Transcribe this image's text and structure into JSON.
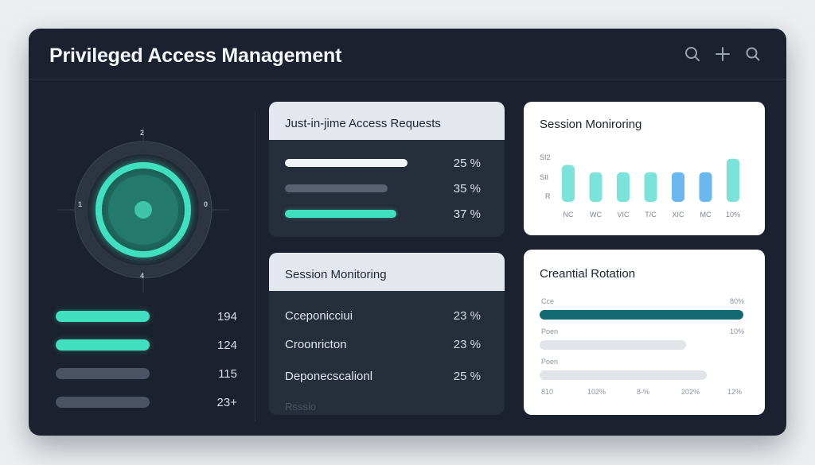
{
  "header": {
    "title": "Privileged Access Management",
    "icons": [
      "search-icon",
      "plus-icon",
      "search-icon"
    ]
  },
  "dial": {
    "labels": {
      "top": "2",
      "left": "1",
      "right": "0",
      "bottom": "4"
    },
    "colors": {
      "accent": "#3fdfc0",
      "ring": "#3b4454",
      "center": "#1f6e62"
    }
  },
  "left_bars": [
    {
      "value": "194",
      "active": true
    },
    {
      "value": "124",
      "active": true
    },
    {
      "value": "115",
      "active": false
    },
    {
      "value": "23+",
      "active": false
    }
  ],
  "jit_card": {
    "title": "Just-in-jime Access Requests",
    "rows": [
      {
        "value": "25 %",
        "fill": 1.0,
        "color": "#f2f4f7"
      },
      {
        "value": "35 %",
        "fill": 0.84,
        "color": "#586273"
      },
      {
        "value": "37 %",
        "fill": 0.91,
        "color": "#3fdfc0"
      }
    ]
  },
  "session_card_dark": {
    "title": "Session Monitoring",
    "rows": [
      {
        "label": "Cceponicciui",
        "value": "23 %"
      },
      {
        "label": "Croonricton",
        "value": "23 %"
      },
      {
        "label": "Deponecscalionl",
        "value": "25 %"
      }
    ],
    "faded": "Rsssio"
  },
  "session_card_light": {
    "title": "Session Moniroring",
    "y_ticks": [
      "SI2",
      "SII",
      "R"
    ],
    "chart_data": {
      "type": "bar",
      "categories": [
        "NC",
        "WC",
        "VIC",
        "T/C",
        "XIC",
        "MC",
        "10%"
      ],
      "values": [
        6,
        4.8,
        4.8,
        4.8,
        4.8,
        4.8,
        7
      ],
      "ylim": [
        0,
        8
      ],
      "colors": [
        "#7be3d9",
        "#7be3d9",
        "#7be3d9",
        "#7be3d9",
        "#69b8f0",
        "#69b8f0",
        "#7be3d9"
      ]
    }
  },
  "credential_card": {
    "title": "Creantial Rotation",
    "rows": [
      {
        "label": "Cce",
        "value": "80%",
        "fill": 1.0,
        "color": "#136a72"
      },
      {
        "label": "Poen",
        "value": "10%",
        "fill": 0.72,
        "color": "#e1e4e9"
      },
      {
        "label": "Poen",
        "value": "",
        "fill": 0.82,
        "color": "#e1e4e9"
      }
    ],
    "axis": [
      "810",
      "102%",
      "8-%",
      "202%",
      "12%"
    ]
  }
}
